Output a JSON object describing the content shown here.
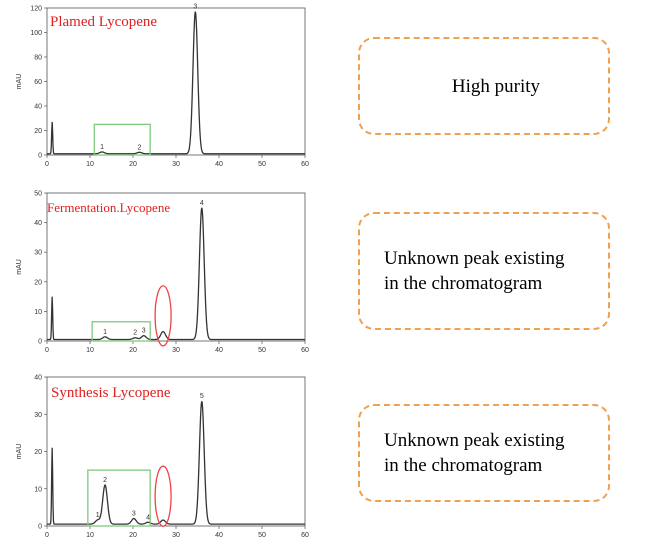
{
  "chart_data": [
    {
      "type": "line",
      "title": "Plamed Lycopene",
      "ylabel": "mAU",
      "xlim": [
        0,
        60
      ],
      "ylim": [
        0,
        120
      ],
      "xticks": [
        "0",
        "10",
        "20",
        "30",
        "40",
        "50",
        "60"
      ],
      "yticks": [
        "0",
        "20",
        "40",
        "60",
        "80",
        "100",
        "120"
      ],
      "baseline": 1.0,
      "spikes": [
        [
          1.2,
          27
        ]
      ],
      "peaks": [
        {
          "label": "1",
          "x": 12.8,
          "y": 2.5
        },
        {
          "label": "2",
          "x": 21.5,
          "y": 2.2
        },
        {
          "label": "3",
          "x": 34.5,
          "y": 117
        }
      ],
      "annotations": [
        {
          "type": "box",
          "x": [
            11,
            24
          ],
          "y": [
            0,
            25
          ]
        }
      ]
    },
    {
      "type": "line",
      "title": "Fermentation.Lycopene",
      "ylabel": "mAU",
      "xlim": [
        0,
        60
      ],
      "ylim": [
        0,
        50
      ],
      "xticks": [
        "0",
        "10",
        "20",
        "30",
        "40",
        "50",
        "60"
      ],
      "yticks": [
        "0",
        "10",
        "20",
        "30",
        "40",
        "50"
      ],
      "baseline": 0.5,
      "spikes": [
        [
          1.2,
          15
        ]
      ],
      "peaks": [
        {
          "label": "1",
          "x": 13.5,
          "y": 1.4
        },
        {
          "label": "2",
          "x": 20.5,
          "y": 1.1
        },
        {
          "label": "3",
          "x": 22.5,
          "y": 1.8
        },
        {
          "label": "",
          "x": 27,
          "y": 3.2
        },
        {
          "label": "4",
          "x": 36,
          "y": 45
        }
      ],
      "annotations": [
        {
          "type": "box",
          "x": [
            10.5,
            24
          ],
          "y": [
            0,
            6.5
          ]
        },
        {
          "type": "ellipse",
          "x": 27,
          "y": 8.5
        }
      ]
    },
    {
      "type": "line",
      "title": "Synthesis Lycopene",
      "ylabel": "mAU",
      "xlim": [
        0,
        60
      ],
      "ylim": [
        0,
        40
      ],
      "xticks": [
        "0",
        "10",
        "20",
        "30",
        "40",
        "50",
        "60"
      ],
      "yticks": [
        "0",
        "10",
        "20",
        "30",
        "40"
      ],
      "baseline": 0.5,
      "spikes": [
        [
          1.2,
          21
        ]
      ],
      "peaks": [
        {
          "label": "1",
          "x": 11.8,
          "y": 1.6
        },
        {
          "label": "2",
          "x": 13.5,
          "y": 11
        },
        {
          "label": "3",
          "x": 20.2,
          "y": 2
        },
        {
          "label": "4",
          "x": 23.5,
          "y": 1
        },
        {
          "label": "",
          "x": 27,
          "y": 1.6
        },
        {
          "label": "5",
          "x": 36,
          "y": 33.5
        }
      ],
      "annotations": [
        {
          "type": "box",
          "x": [
            9.5,
            24
          ],
          "y": [
            0,
            15
          ]
        },
        {
          "type": "ellipse",
          "x": 27,
          "y": 8
        }
      ]
    }
  ],
  "callouts": [
    {
      "lines": [
        "High purity"
      ]
    },
    {
      "lines": [
        "Unknown peak existing",
        "in the chromatogram"
      ]
    },
    {
      "lines": [
        "Unknown peak existing",
        "in the chromatogram"
      ]
    }
  ],
  "colors": {
    "trace": "#333333",
    "title": "#e02020",
    "box": "#7fc97f",
    "ellipse": "#ee4444",
    "callout_border": "#f0a050"
  }
}
